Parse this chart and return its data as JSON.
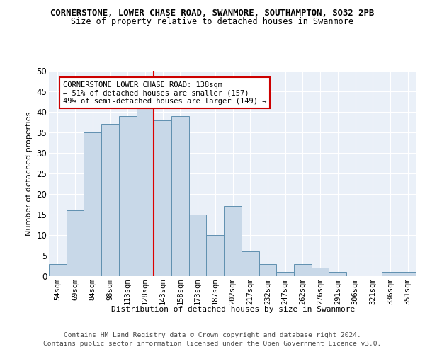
{
  "title_line1": "CORNERSTONE, LOWER CHASE ROAD, SWANMORE, SOUTHAMPTON, SO32 2PB",
  "title_line2": "Size of property relative to detached houses in Swanmore",
  "xlabel": "Distribution of detached houses by size in Swanmore",
  "ylabel": "Number of detached properties",
  "categories": [
    "54sqm",
    "69sqm",
    "84sqm",
    "98sqm",
    "113sqm",
    "128sqm",
    "143sqm",
    "158sqm",
    "173sqm",
    "187sqm",
    "202sqm",
    "217sqm",
    "232sqm",
    "247sqm",
    "262sqm",
    "276sqm",
    "291sqm",
    "306sqm",
    "321sqm",
    "336sqm",
    "351sqm"
  ],
  "values": [
    3,
    16,
    35,
    37,
    39,
    41,
    38,
    39,
    15,
    10,
    17,
    6,
    3,
    1,
    3,
    2,
    1,
    0,
    0,
    1,
    1
  ],
  "bar_color": "#c8d8e8",
  "bar_edge_color": "#6090b0",
  "vline_index": 6,
  "vline_color": "#dd0000",
  "ylim": [
    0,
    50
  ],
  "yticks": [
    0,
    5,
    10,
    15,
    20,
    25,
    30,
    35,
    40,
    45,
    50
  ],
  "annotation_text": "CORNERSTONE LOWER CHASE ROAD: 138sqm\n← 51% of detached houses are smaller (157)\n49% of semi-detached houses are larger (149) →",
  "annotation_box_color": "#ffffff",
  "annotation_box_edge": "#cc0000",
  "footer_line1": "Contains HM Land Registry data © Crown copyright and database right 2024.",
  "footer_line2": "Contains public sector information licensed under the Open Government Licence v3.0.",
  "bg_color": "#ffffff",
  "plot_bg_color": "#eaf0f8"
}
